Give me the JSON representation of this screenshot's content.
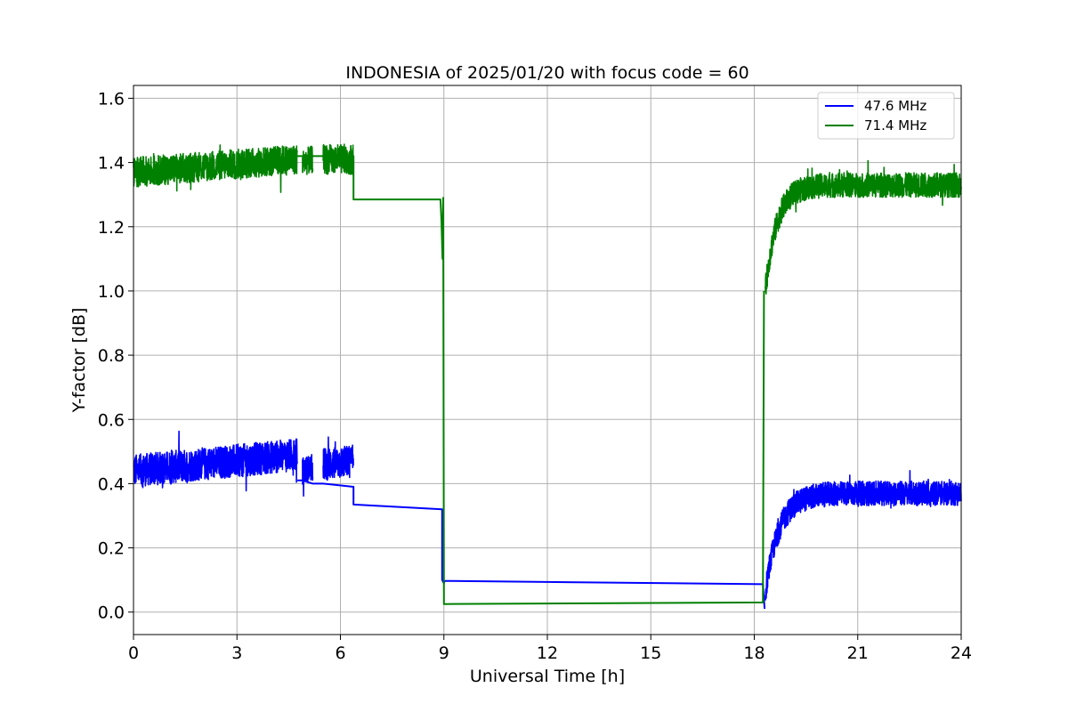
{
  "chart_data": {
    "type": "line",
    "title": "INDONESIA of 2025/01/20 with focus code = 60",
    "xlabel": "Universal Time [h]",
    "ylabel": "Y-factor [dB]",
    "xlim": [
      0,
      24
    ],
    "ylim": [
      -0.07,
      1.64
    ],
    "xticks": [
      0,
      3,
      6,
      9,
      12,
      15,
      18,
      21,
      24
    ],
    "xtick_labels": [
      "0",
      "3",
      "6",
      "9",
      "12",
      "15",
      "18",
      "21",
      "24"
    ],
    "yticks": [
      0.0,
      0.2,
      0.4,
      0.6,
      0.8,
      1.0,
      1.2,
      1.4,
      1.6
    ],
    "ytick_labels": [
      "0.0",
      "0.2",
      "0.4",
      "0.6",
      "0.8",
      "1.0",
      "1.2",
      "1.4",
      "1.6"
    ],
    "grid": true,
    "legend_position": "top-right",
    "series": [
      {
        "name": "47.6 MHz",
        "color": "#0000ff",
        "noisy_segments": [
          {
            "x_start": 0.0,
            "x_end": 4.75,
            "base_start": 0.44,
            "base_end": 0.49,
            "amplitude": 0.06
          },
          {
            "x_start": 4.9,
            "x_end": 5.2,
            "base_start": 0.44,
            "base_end": 0.45,
            "amplitude": 0.05
          },
          {
            "x_start": 5.5,
            "x_end": 6.38,
            "base_start": 0.46,
            "base_end": 0.47,
            "amplitude": 0.06
          },
          {
            "x_start": 18.32,
            "x_end": 24.0,
            "base_start": 0.06,
            "base_end": 0.37,
            "amplitude": 0.045,
            "recovery_hours": 1.2
          }
        ],
        "points": [
          {
            "x": 4.75,
            "y": 0.41
          },
          {
            "x": 4.9,
            "y": 0.41
          },
          {
            "x": 5.2,
            "y": 0.4
          },
          {
            "x": 5.5,
            "y": 0.4
          },
          {
            "x": 6.38,
            "y": 0.39
          },
          {
            "x": 6.38,
            "y": 0.335
          },
          {
            "x": 8.95,
            "y": 0.32
          },
          {
            "x": 8.95,
            "y": 0.1
          },
          {
            "x": 9.0,
            "y": 0.09
          },
          {
            "x": 9.02,
            "y": 0.097
          },
          {
            "x": 18.25,
            "y": 0.087
          },
          {
            "x": 18.3,
            "y": 0.01
          }
        ]
      },
      {
        "name": "71.4 MHz",
        "color": "#008000",
        "noisy_segments": [
          {
            "x_start": 0.0,
            "x_end": 4.75,
            "base_start": 1.37,
            "base_end": 1.41,
            "amplitude": 0.055
          },
          {
            "x_start": 4.9,
            "x_end": 5.2,
            "base_start": 1.4,
            "base_end": 1.41,
            "amplitude": 0.05
          },
          {
            "x_start": 5.5,
            "x_end": 6.38,
            "base_start": 1.41,
            "base_end": 1.41,
            "amplitude": 0.055
          },
          {
            "x_start": 18.32,
            "x_end": 24.0,
            "base_start": 1.0,
            "base_end": 1.33,
            "amplitude": 0.045,
            "recovery_hours": 1.0
          }
        ],
        "points": [
          {
            "x": 4.75,
            "y": 1.42
          },
          {
            "x": 4.9,
            "y": 1.42
          },
          {
            "x": 5.2,
            "y": 1.42
          },
          {
            "x": 5.5,
            "y": 1.42
          },
          {
            "x": 6.38,
            "y": 1.42
          },
          {
            "x": 6.38,
            "y": 1.285
          },
          {
            "x": 8.9,
            "y": 1.285
          },
          {
            "x": 8.93,
            "y": 1.22
          },
          {
            "x": 8.96,
            "y": 1.1
          },
          {
            "x": 8.98,
            "y": 1.29
          },
          {
            "x": 9.0,
            "y": 0.025
          },
          {
            "x": 18.25,
            "y": 0.03
          },
          {
            "x": 18.28,
            "y": 1.0
          }
        ]
      }
    ]
  }
}
